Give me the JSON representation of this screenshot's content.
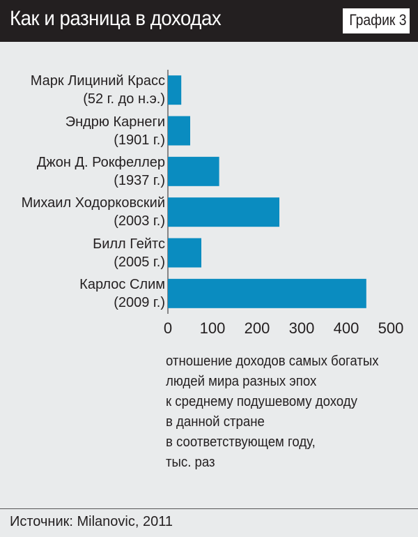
{
  "header": {
    "title": "Как и разница в доходах",
    "tag": "График 3"
  },
  "chart_data": {
    "type": "bar",
    "orientation": "horizontal",
    "categories": [
      [
        "Марк Лициний Красс",
        "(52 г. до н.э.)"
      ],
      [
        "Эндрю Карнеги",
        "(1901 г.)"
      ],
      [
        "Джон Д. Рокфеллер",
        "(1937 г.)"
      ],
      [
        "Михаил Ходорковский",
        "(2003 г.)"
      ],
      [
        "Билл Гейтс",
        "(2005 г.)"
      ],
      [
        "Карлос Слим",
        "(2009 г.)"
      ]
    ],
    "values": [
      30,
      50,
      115,
      250,
      75,
      445
    ],
    "xlim": [
      0,
      500
    ],
    "xticks": [
      "0",
      "100",
      "200",
      "300",
      "400",
      "500"
    ],
    "xlabel_lines": [
      "отношение доходов самых богатых",
      "людей мира разных эпох",
      "к среднему подушевому доходу",
      "в данной стране",
      "в соответствующем году,",
      "тыс. раз"
    ],
    "bar_color": "#0a8cc0",
    "grid": false
  },
  "footer": {
    "source": "Источник: Milanovic, 2011"
  }
}
